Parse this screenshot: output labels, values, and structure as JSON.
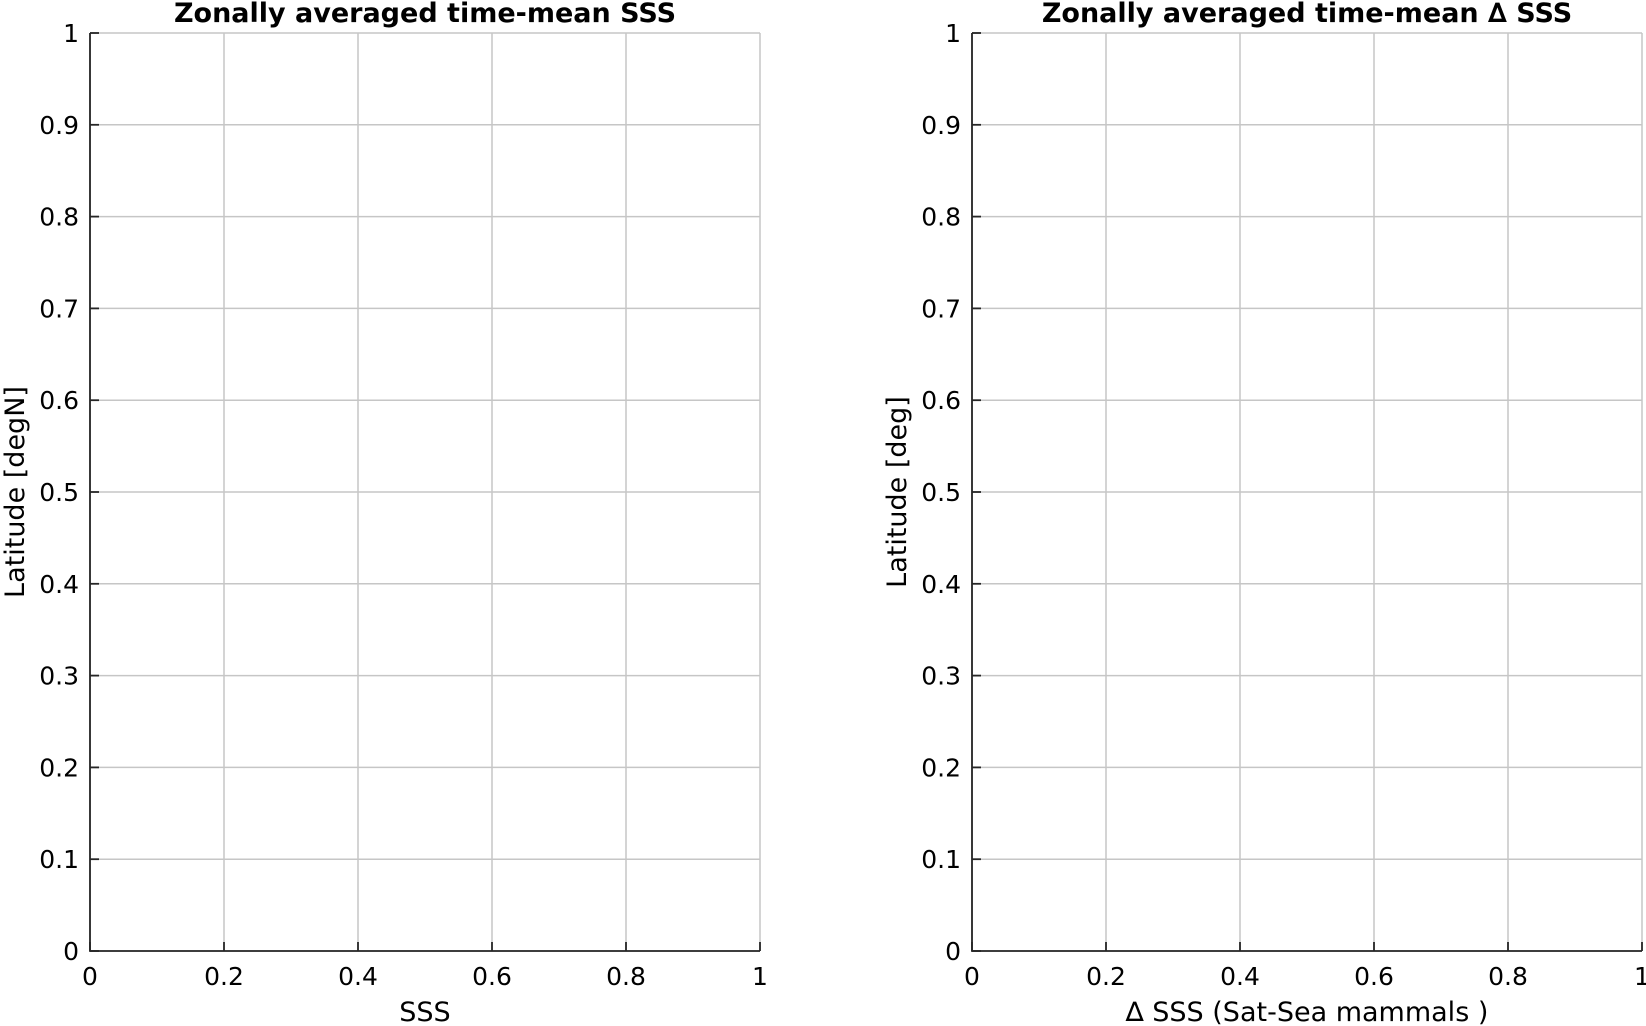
{
  "chart_data": [
    {
      "type": "line",
      "title": "Zonally averaged time-mean SSS",
      "xlabel": "SSS",
      "ylabel": "Latitude [degN]",
      "xlim": [
        0,
        1
      ],
      "ylim": [
        0,
        1
      ],
      "xticks": [
        "0",
        "0.2",
        "0.4",
        "0.6",
        "0.8",
        "1"
      ],
      "yticks": [
        "0",
        "0.1",
        "0.2",
        "0.3",
        "0.4",
        "0.5",
        "0.6",
        "0.7",
        "0.8",
        "0.9",
        "1"
      ],
      "grid": true,
      "series": []
    },
    {
      "type": "line",
      "title": "Zonally averaged time-mean ∆ SSS",
      "xlabel": "∆ SSS (Sat-Sea mammals )",
      "ylabel": "Latitude [deg]",
      "xlim": [
        0,
        1
      ],
      "ylim": [
        0,
        1
      ],
      "xticks": [
        "0",
        "0.2",
        "0.4",
        "0.6",
        "0.8",
        "1"
      ],
      "yticks": [
        "0",
        "0.1",
        "0.2",
        "0.3",
        "0.4",
        "0.5",
        "0.6",
        "0.7",
        "0.8",
        "0.9",
        "1"
      ],
      "grid": true,
      "series": []
    }
  ]
}
